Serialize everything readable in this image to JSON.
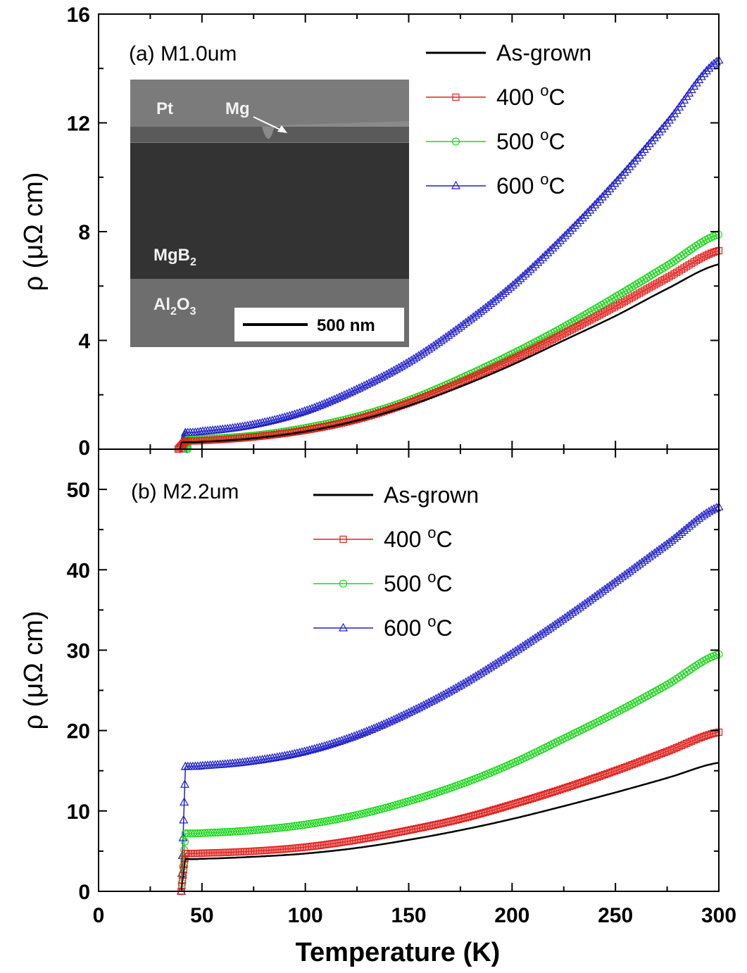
{
  "x_axis": {
    "label": "Temperature (K)",
    "ticks": [
      "0",
      "50",
      "100",
      "150",
      "200",
      "250",
      "300"
    ]
  },
  "colors": {
    "As-grown": "#000000",
    "400 °C": "#e0201c",
    "500 °C": "#1fd61f",
    "600 °C": "#2020c8"
  },
  "inset": {
    "labels": {
      "pt": "Pt",
      "mg": "Mg",
      "mgb2": "MgB",
      "mgb2_sub": "2",
      "al2o3_a": "Al",
      "al2o3_sub1": "2",
      "al2o3_b": "O",
      "al2o3_sub2": "3"
    },
    "scale_bar": "500 nm"
  },
  "chart_data": [
    {
      "type": "line",
      "panel_label": "(a) M1.0um",
      "xlabel": "Temperature (K)",
      "ylabel": "ρ (μΩ cm)",
      "xlim": [
        0,
        300
      ],
      "ylim": [
        0,
        16
      ],
      "y_ticks": [
        "0",
        "4",
        "8",
        "12",
        "16"
      ],
      "legend": [
        "As-grown",
        "400 °C",
        "500 °C",
        "600 °C"
      ],
      "legend_placement": "top-right",
      "series": [
        {
          "name": "As-grown",
          "marker": "none",
          "tc": 39.5,
          "x": [
            40,
            50,
            75,
            100,
            125,
            150,
            175,
            200,
            225,
            250,
            275,
            300
          ],
          "y": [
            0.25,
            0.27,
            0.4,
            0.65,
            1.05,
            1.6,
            2.3,
            3.1,
            4.0,
            4.9,
            5.9,
            6.8
          ]
        },
        {
          "name": "400 °C",
          "marker": "square",
          "tc": 38.5,
          "x": [
            42,
            50,
            75,
            100,
            125,
            150,
            175,
            200,
            225,
            250,
            275,
            300
          ],
          "y": [
            0.3,
            0.32,
            0.45,
            0.7,
            1.1,
            1.7,
            2.45,
            3.3,
            4.25,
            5.25,
            6.3,
            7.3
          ]
        },
        {
          "name": "500 °C",
          "marker": "circle",
          "tc": 43,
          "x": [
            43,
            50,
            75,
            100,
            125,
            150,
            175,
            200,
            225,
            250,
            275,
            300
          ],
          "y": [
            0.35,
            0.38,
            0.5,
            0.78,
            1.2,
            1.8,
            2.6,
            3.5,
            4.5,
            5.6,
            6.75,
            7.9
          ]
        },
        {
          "name": "600 °C",
          "marker": "triangle",
          "tc": 41,
          "x": [
            42,
            50,
            75,
            100,
            125,
            150,
            175,
            200,
            225,
            250,
            275,
            300
          ],
          "y": [
            0.6,
            0.65,
            0.9,
            1.4,
            2.2,
            3.2,
            4.5,
            6.0,
            7.8,
            9.8,
            12.0,
            14.3
          ]
        }
      ]
    },
    {
      "type": "line",
      "panel_label": "(b) M2.2um",
      "xlabel": "Temperature (K)",
      "ylabel": "ρ (μΩ cm)",
      "xlim": [
        0,
        300
      ],
      "ylim": [
        0,
        55
      ],
      "y_ticks": [
        "0",
        "10",
        "20",
        "30",
        "40",
        "50"
      ],
      "legend": [
        "As-grown",
        "400 °C",
        "500 °C",
        "600 °C"
      ],
      "legend_placement": "top-center",
      "series": [
        {
          "name": "As-grown",
          "marker": "none",
          "tc": 40,
          "x": [
            42,
            50,
            75,
            100,
            125,
            150,
            175,
            200,
            225,
            250,
            275,
            300
          ],
          "y": [
            4.0,
            4.05,
            4.3,
            4.7,
            5.4,
            6.4,
            7.6,
            9.0,
            10.6,
            12.3,
            14.1,
            16.0
          ]
        },
        {
          "name": "400 °C",
          "marker": "square",
          "tc": 40,
          "x": [
            42,
            50,
            75,
            100,
            125,
            150,
            175,
            200,
            225,
            250,
            275,
            300
          ],
          "y": [
            4.7,
            4.75,
            5.0,
            5.5,
            6.4,
            7.6,
            9.0,
            10.8,
            12.8,
            15.0,
            17.4,
            19.8
          ]
        },
        {
          "name": "500 °C",
          "marker": "circle",
          "tc": 40,
          "x": [
            42,
            50,
            75,
            100,
            125,
            150,
            175,
            200,
            225,
            250,
            275,
            300
          ],
          "y": [
            7.2,
            7.25,
            7.6,
            8.3,
            9.5,
            11.2,
            13.3,
            15.9,
            19.0,
            22.2,
            25.7,
            29.5
          ]
        },
        {
          "name": "600 °C",
          "marker": "triangle",
          "tc": 40,
          "x": [
            42,
            50,
            75,
            100,
            125,
            150,
            175,
            200,
            225,
            250,
            275,
            300
          ],
          "y": [
            15.5,
            15.6,
            16.2,
            17.4,
            19.4,
            22.2,
            25.6,
            29.6,
            33.9,
            38.5,
            43.2,
            47.8
          ]
        }
      ]
    }
  ]
}
